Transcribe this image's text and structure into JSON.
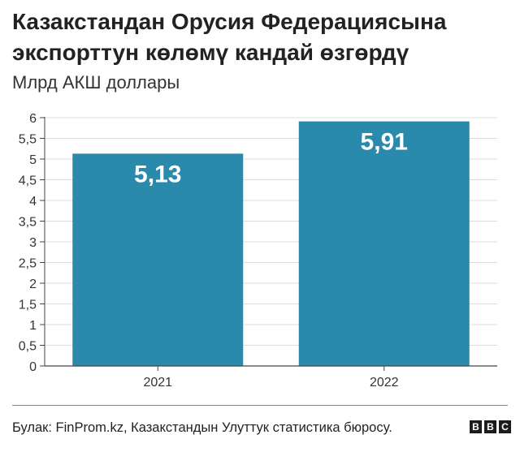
{
  "title": "Казакстандан Орусия Федерациясына экспорттун көлөмү кандай өзгөрдү",
  "subtitle": "Млрд АКШ доллары",
  "source": "Булак: FinProm.kz, Казакстандын Улуттук статистика бюросу.",
  "logo": [
    "B",
    "B",
    "C"
  ],
  "colors": {
    "bar": "#2a8aab",
    "bar_label": "#ffffff",
    "grid": "#dcdcdc",
    "axis": "#444444"
  },
  "chart_data": {
    "type": "bar",
    "categories": [
      "2021",
      "2022"
    ],
    "values": [
      5.13,
      5.91
    ],
    "value_labels": [
      "5,13",
      "5,91"
    ],
    "title": "Казакстандан Орусия Федерациясына экспорттун көлөмү кандай өзгөрдү",
    "ylabel": "Млрд АКШ доллары",
    "xlabel": "",
    "ylim": [
      0,
      6
    ],
    "yticks": [
      0,
      0.5,
      1,
      1.5,
      2,
      2.5,
      3,
      3.5,
      4,
      4.5,
      5,
      5.5,
      6
    ],
    "ytick_labels": [
      "0",
      "0,5",
      "1",
      "1,5",
      "2",
      "2,5",
      "3",
      "3,5",
      "4",
      "4,5",
      "5",
      "5,5",
      "6"
    ],
    "grid": true,
    "legend": "none"
  }
}
